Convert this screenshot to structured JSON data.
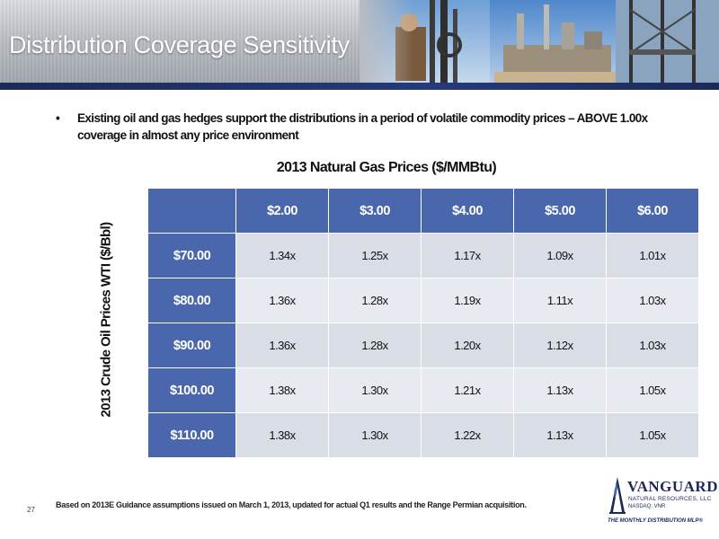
{
  "slide": {
    "title": "Distribution Coverage Sensitivity",
    "bullet": "Existing oil and gas hedges support the distributions in a period of volatile commodity prices – ABOVE 1.00x coverage in almost any price environment",
    "bullet_marker": "•",
    "page_number": "27",
    "footnote": "Based on 2013E Guidance assumptions issued on March 1, 2013, updated for actual Q1 results and the Range Permian acquisition."
  },
  "table": {
    "title": "2013 Natural Gas Prices ($/MMBtu)",
    "row_axis_label": "2013 Crude Oil Prices WTI ($/Bbl)",
    "columns": [
      "$2.00",
      "$3.00",
      "$4.00",
      "$5.00",
      "$6.00"
    ],
    "rows": [
      {
        "label": "$70.00",
        "values": [
          "1.34x",
          "1.25x",
          "1.17x",
          "1.09x",
          "1.01x"
        ]
      },
      {
        "label": "$80.00",
        "values": [
          "1.36x",
          "1.28x",
          "1.19x",
          "1.11x",
          "1.03x"
        ]
      },
      {
        "label": "$90.00",
        "values": [
          "1.36x",
          "1.28x",
          "1.20x",
          "1.12x",
          "1.03x"
        ]
      },
      {
        "label": "$100.00",
        "values": [
          "1.38x",
          "1.30x",
          "1.21x",
          "1.13x",
          "1.05x"
        ]
      },
      {
        "label": "$110.00",
        "values": [
          "1.38x",
          "1.30x",
          "1.22x",
          "1.13x",
          "1.05x"
        ]
      }
    ]
  },
  "logo": {
    "name": "VANGUARD",
    "subtitle": "NATURAL RESOURCES, LLC",
    "ticker": "NASDAQ: VNR",
    "tagline": "THE MONTHLY DISTRIBUTION MLP®"
  },
  "colors": {
    "header_band": "#1b2b57",
    "table_header": "#4a66ad",
    "cell_light": "#e7eaf0",
    "cell_alt": "#d9dde6"
  }
}
